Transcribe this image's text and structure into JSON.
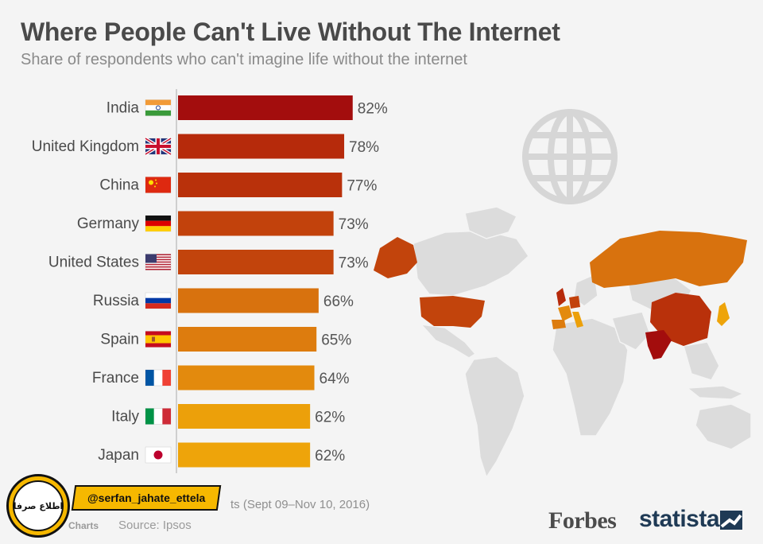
{
  "header": {
    "title": "Where People Can't Live Without The Internet",
    "subtitle": "Share of respondents who can't imagine life without the internet"
  },
  "chart_data": {
    "type": "bar",
    "orientation": "horizontal",
    "title": "Where People Can't Live Without The Internet",
    "subtitle": "Share of respondents who can't imagine life without the internet",
    "categories": [
      "India",
      "United Kingdom",
      "China",
      "Germany",
      "United States",
      "Russia",
      "Spain",
      "France",
      "Italy",
      "Japan"
    ],
    "values": [
      82,
      78,
      77,
      73,
      73,
      66,
      65,
      64,
      62,
      62
    ],
    "value_labels": [
      "82%",
      "78%",
      "77%",
      "73%",
      "73%",
      "66%",
      "65%",
      "64%",
      "62%",
      "62%"
    ],
    "unit": "%",
    "bar_colors": [
      "#a30d0d",
      "#b62a0b",
      "#b9310b",
      "#c2420c",
      "#c2440c",
      "#d8720e",
      "#dd7c0e",
      "#e38a0d",
      "#eca00a",
      "#eea40a"
    ],
    "flags": [
      "india-flag",
      "uk-flag",
      "china-flag",
      "germany-flag",
      "usa-flag",
      "russia-flag",
      "spain-flag",
      "france-flag",
      "italy-flag",
      "japan-flag"
    ],
    "xlim": [
      0,
      100
    ],
    "grid": false,
    "legend": "none"
  },
  "map": {
    "icon": "globe-icon",
    "highlight_colors": {
      "high": "#a30d0d",
      "mid": "#c2440c",
      "low": "#eca00a"
    }
  },
  "footer": {
    "source_fragment": "ts (Sept 09–Nov 10, 2016)",
    "credit_fragment": "Charts",
    "source_label": "Source: Ipsos",
    "forbes": "Forbes",
    "statista": "statista"
  },
  "watermark": {
    "handle": "@serfan_jahate_ettela",
    "logo_text": "اطلاع صرفا"
  }
}
